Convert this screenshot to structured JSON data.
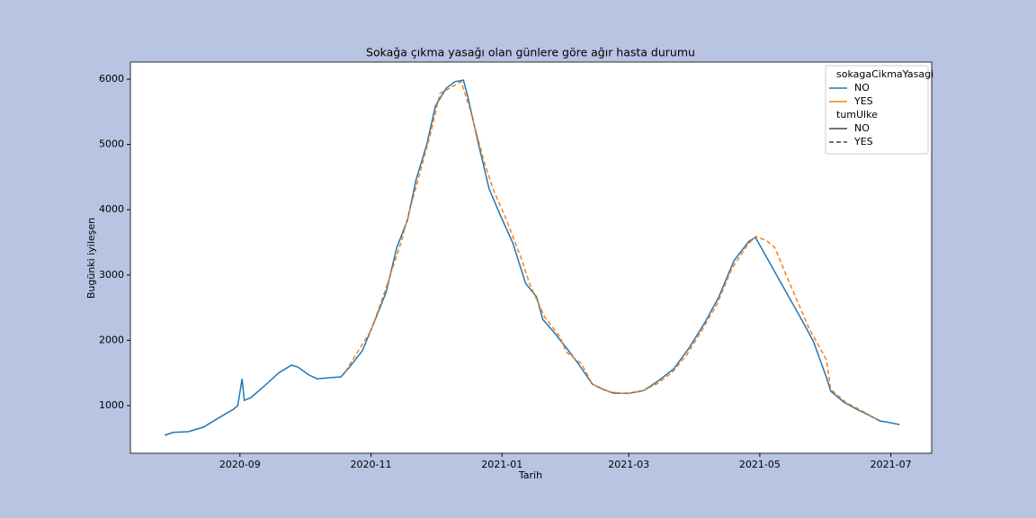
{
  "chart_data": {
    "type": "line",
    "title": "Sokağa çıkma yasağı olan günlere göre ağır hasta durumu",
    "x_label": "Tarih",
    "y_label": "Bugünki iyileşen",
    "xlim": [
      "2020-07-12",
      "2021-07-20"
    ],
    "ylim": [
      270,
      6262
    ],
    "xticks": [
      {
        "value": "2020-09-01",
        "label": "2020-09"
      },
      {
        "value": "2020-11-01",
        "label": "2020-11"
      },
      {
        "value": "2021-01-01",
        "label": "2021-01"
      },
      {
        "value": "2021-03-01",
        "label": "2021-03"
      },
      {
        "value": "2021-05-01",
        "label": "2021-05"
      },
      {
        "value": "2021-07-01",
        "label": "2021-07"
      }
    ],
    "yticks": [
      1000,
      2000,
      3000,
      4000,
      5000,
      6000
    ],
    "series": [
      {
        "name": "NO",
        "color": "#1f77b4",
        "linestyle": "solid",
        "x": [
          "2020-07-28",
          "2020-08-01",
          "2020-08-08",
          "2020-08-15",
          "2020-08-22",
          "2020-08-29",
          "2020-08-31",
          "2020-09-02",
          "2020-09-03",
          "2020-09-06",
          "2020-09-12",
          "2020-09-19",
          "2020-09-25",
          "2020-09-28",
          "2020-10-03",
          "2020-10-07",
          "2020-10-14",
          "2020-10-18",
          "2020-10-22",
          "2020-10-28",
          "2020-11-03",
          "2020-11-08",
          "2020-11-13",
          "2020-11-18",
          "2020-11-22",
          "2020-11-27",
          "2020-12-01",
          "2020-12-06",
          "2020-12-10",
          "2020-12-14",
          "2020-12-16",
          "2020-12-21",
          "2020-12-26",
          "2020-12-31",
          "2021-01-06",
          "2021-01-12",
          "2021-01-17",
          "2021-01-20",
          "2021-01-26",
          "2021-02-01",
          "2021-02-06",
          "2021-02-12",
          "2021-02-17",
          "2021-02-22",
          "2021-03-01",
          "2021-03-08",
          "2021-03-15",
          "2021-03-22",
          "2021-03-29",
          "2021-04-05",
          "2021-04-12",
          "2021-04-19",
          "2021-04-26",
          "2021-04-29",
          "2021-05-22",
          "2021-05-26",
          "2021-06-01",
          "2021-06-03",
          "2021-06-09",
          "2021-06-15",
          "2021-06-21",
          "2021-06-26",
          "2021-06-29",
          "2021-07-05"
        ],
        "values": [
          545,
          590,
          600,
          670,
          810,
          945,
          1000,
          1410,
          1080,
          1120,
          1290,
          1500,
          1620,
          1590,
          1470,
          1410,
          1430,
          1440,
          1590,
          1840,
          2320,
          2735,
          3420,
          3840,
          4460,
          5000,
          5590,
          5860,
          5960,
          5985,
          5740,
          5010,
          4320,
          3930,
          3490,
          2870,
          2670,
          2320,
          2090,
          1840,
          1620,
          1330,
          1250,
          1190,
          1190,
          1230,
          1385,
          1565,
          1880,
          2250,
          2670,
          3220,
          3520,
          3575,
          2225,
          1980,
          1430,
          1220,
          1055,
          945,
          850,
          765,
          750,
          710
        ]
      },
      {
        "name": "YES",
        "color": "#ff7f0e",
        "linestyle": "dashed",
        "x": [
          "2020-10-20",
          "2020-11-01",
          "2020-11-08",
          "2020-11-15",
          "2020-11-22",
          "2020-11-29",
          "2020-12-03",
          "2020-12-13",
          "2020-12-17",
          "2020-12-24",
          "2020-12-28",
          "2021-01-03",
          "2021-01-10",
          "2021-01-14",
          "2021-01-21",
          "2021-01-28",
          "2021-01-31",
          "2021-02-07",
          "2021-02-12",
          "2021-02-20",
          "2021-02-28",
          "2021-03-07",
          "2021-03-14",
          "2021-03-21",
          "2021-03-28",
          "2021-04-04",
          "2021-04-11",
          "2021-04-18",
          "2021-04-25",
          "2021-04-29",
          "2021-05-04",
          "2021-05-08",
          "2021-05-14",
          "2021-05-24",
          "2021-06-01",
          "2021-06-03",
          "2021-06-10",
          "2021-06-17",
          "2021-06-24"
        ],
        "values": [
          1520,
          2150,
          2800,
          3500,
          4350,
          5200,
          5780,
          5960,
          5550,
          4700,
          4300,
          3850,
          3250,
          2850,
          2350,
          2050,
          1820,
          1640,
          1330,
          1210,
          1180,
          1220,
          1330,
          1500,
          1780,
          2150,
          2550,
          3100,
          3450,
          3590,
          3530,
          3420,
          2940,
          2180,
          1700,
          1250,
          1050,
          930,
          800
        ]
      }
    ],
    "legend_title": "sokagaCikmaYasagi",
    "style_legend": {
      "title": "tumUlke",
      "color": "#444444",
      "entries": [
        {
          "label": "NO",
          "linestyle": "solid"
        },
        {
          "label": "YES",
          "linestyle": "dashed"
        }
      ]
    },
    "legend_position": "upper right"
  }
}
